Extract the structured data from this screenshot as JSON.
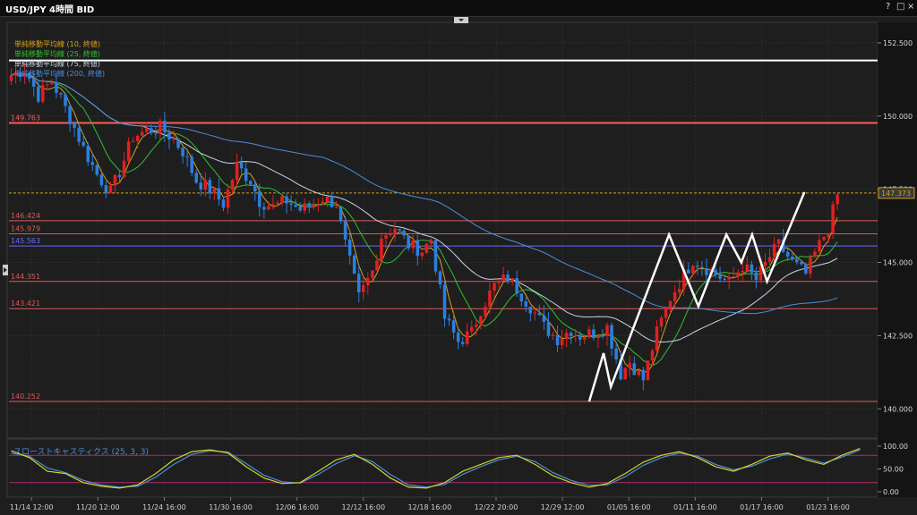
{
  "window": {
    "title": "USD/JPY 4時間 BID",
    "help_label": "?",
    "restore_label": "□",
    "close_label": "×"
  },
  "chart_data": {
    "type": "candlestick",
    "symbol": "USD/JPY",
    "timeframe": "4時間",
    "price_side": "BID",
    "ylim": [
      139.0,
      153.2
    ],
    "yticks": [
      {
        "value": 152.5,
        "label": "152.500"
      },
      {
        "value": 150.0,
        "label": "150.000"
      },
      {
        "value": 147.5,
        "label": "147.500"
      },
      {
        "value": 145.0,
        "label": "145.000"
      },
      {
        "value": 142.5,
        "label": "142.500"
      },
      {
        "value": 140.0,
        "label": "140.000"
      }
    ],
    "xticks": [
      "11/14 12:00",
      "11/20 12:00",
      "11/24 16:00",
      "11/30 16:00",
      "12/06 16:00",
      "12/12 16:00",
      "12/18 16:00",
      "12/22 20:00",
      "12/29 12:00",
      "01/05 16:00",
      "01/11 16:00",
      "01/17 16:00",
      "01/23 16:00"
    ],
    "current_price": {
      "value": 147.373,
      "label": "147.373"
    },
    "legend": [
      {
        "name": "単純移動平均線 (10, 終値)",
        "color": "#d4a017"
      },
      {
        "name": "単純移動平均線 (25, 終値)",
        "color": "#2ec22e"
      },
      {
        "name": "単純移動平均線 (75, 終値)",
        "color": "#c8d4e8"
      },
      {
        "name": "単純移動平均線 (200, 終値)",
        "color": "#4a8ed8"
      }
    ],
    "hlines": [
      {
        "value": 151.9,
        "label": "",
        "color": "#ffffff"
      },
      {
        "value": 149.763,
        "label": "149.763",
        "color": "#ff5a5a"
      },
      {
        "value": 146.424,
        "label": "146.424",
        "color": "#e05858"
      },
      {
        "value": 145.979,
        "label": "145.979",
        "color": "#e05858"
      },
      {
        "value": 145.563,
        "label": "145.563",
        "color": "#6a6aff"
      },
      {
        "value": 144.351,
        "label": "144.351",
        "color": "#e05858"
      },
      {
        "value": 143.421,
        "label": "143.421",
        "color": "#e05858"
      },
      {
        "value": 140.252,
        "label": "140.252",
        "color": "#e05858"
      }
    ],
    "close_path": [
      [
        0,
        151.4
      ],
      [
        3,
        151.6
      ],
      [
        6,
        150.7
      ],
      [
        9,
        151.2
      ],
      [
        11,
        150.6
      ],
      [
        14,
        149.6
      ],
      [
        16,
        148.9
      ],
      [
        19,
        148.0
      ],
      [
        22,
        147.4
      ],
      [
        24,
        148.1
      ],
      [
        27,
        149.3
      ],
      [
        30,
        149.5
      ],
      [
        33,
        149.6
      ],
      [
        36,
        149.2
      ],
      [
        38,
        148.8
      ],
      [
        41,
        147.8
      ],
      [
        44,
        147.5
      ],
      [
        47,
        147.0
      ],
      [
        50,
        148.3
      ],
      [
        53,
        147.8
      ],
      [
        55,
        147.1
      ],
      [
        58,
        146.9
      ],
      [
        61,
        147.1
      ],
      [
        64,
        146.8
      ],
      [
        66,
        146.9
      ],
      [
        69,
        147.2
      ],
      [
        72,
        147.0
      ],
      [
        74,
        145.6
      ],
      [
        77,
        143.8
      ],
      [
        80,
        144.7
      ],
      [
        82,
        145.9
      ],
      [
        85,
        146.2
      ],
      [
        88,
        145.6
      ],
      [
        91,
        145.4
      ],
      [
        93,
        145.8
      ],
      [
        96,
        143.1
      ],
      [
        99,
        142.3
      ],
      [
        102,
        142.6
      ],
      [
        104,
        143.4
      ],
      [
        107,
        144.2
      ],
      [
        110,
        144.5
      ],
      [
        113,
        143.9
      ],
      [
        115,
        143.5
      ],
      [
        118,
        142.8
      ],
      [
        121,
        142.4
      ],
      [
        124,
        142.7
      ],
      [
        126,
        142.5
      ],
      [
        129,
        142.6
      ],
      [
        132,
        142.8
      ],
      [
        135,
        141.2
      ],
      [
        137,
        141.6
      ],
      [
        140,
        141.0
      ],
      [
        143,
        142.6
      ],
      [
        146,
        143.8
      ],
      [
        148,
        144.3
      ],
      [
        151,
        145.1
      ],
      [
        154,
        144.8
      ],
      [
        157,
        144.5
      ],
      [
        159,
        144.3
      ],
      [
        162,
        144.9
      ],
      [
        165,
        144.4
      ],
      [
        168,
        145.2
      ],
      [
        170,
        145.6
      ],
      [
        173,
        145.0
      ],
      [
        176,
        144.6
      ],
      [
        178,
        145.3
      ],
      [
        181,
        146.2
      ],
      [
        183,
        147.3
      ]
    ],
    "zigzag": [
      [
        128,
        140.25
      ],
      [
        131.2,
        141.9
      ],
      [
        132.8,
        140.75
      ],
      [
        145.7,
        145.95
      ],
      [
        152.2,
        143.5
      ],
      [
        158.4,
        145.95
      ],
      [
        161.7,
        145.0
      ],
      [
        164.1,
        145.95
      ],
      [
        167.4,
        144.35
      ],
      [
        175.7,
        147.4
      ]
    ],
    "stochastic": {
      "title": "スローストキャスティクス (25, 3, 3)",
      "ylim": [
        0,
        100
      ],
      "yticks": [
        {
          "value": 100,
          "label": "100.00"
        },
        {
          "value": 50,
          "label": "50.00"
        },
        {
          "value": 0,
          "label": "0.00"
        }
      ],
      "levels": [
        80,
        20
      ],
      "k_color": "#d4d42a",
      "d_color": "#4a8ed8",
      "k_path": [
        [
          0,
          90
        ],
        [
          4,
          75
        ],
        [
          8,
          45
        ],
        [
          12,
          40
        ],
        [
          16,
          20
        ],
        [
          20,
          12
        ],
        [
          24,
          8
        ],
        [
          28,
          15
        ],
        [
          32,
          40
        ],
        [
          36,
          70
        ],
        [
          40,
          88
        ],
        [
          44,
          92
        ],
        [
          48,
          85
        ],
        [
          52,
          55
        ],
        [
          56,
          30
        ],
        [
          60,
          18
        ],
        [
          64,
          20
        ],
        [
          68,
          45
        ],
        [
          72,
          70
        ],
        [
          76,
          82
        ],
        [
          80,
          60
        ],
        [
          84,
          30
        ],
        [
          88,
          10
        ],
        [
          92,
          8
        ],
        [
          96,
          20
        ],
        [
          100,
          45
        ],
        [
          104,
          60
        ],
        [
          108,
          75
        ],
        [
          112,
          80
        ],
        [
          116,
          60
        ],
        [
          120,
          35
        ],
        [
          124,
          20
        ],
        [
          128,
          10
        ],
        [
          132,
          18
        ],
        [
          136,
          40
        ],
        [
          140,
          65
        ],
        [
          144,
          80
        ],
        [
          148,
          88
        ],
        [
          152,
          75
        ],
        [
          156,
          55
        ],
        [
          160,
          45
        ],
        [
          164,
          60
        ],
        [
          168,
          78
        ],
        [
          172,
          85
        ],
        [
          176,
          70
        ],
        [
          180,
          60
        ],
        [
          184,
          80
        ],
        [
          188,
          95
        ]
      ],
      "d_path": [
        [
          0,
          85
        ],
        [
          4,
          78
        ],
        [
          8,
          52
        ],
        [
          12,
          42
        ],
        [
          16,
          25
        ],
        [
          20,
          15
        ],
        [
          24,
          10
        ],
        [
          28,
          12
        ],
        [
          32,
          32
        ],
        [
          36,
          60
        ],
        [
          40,
          82
        ],
        [
          44,
          90
        ],
        [
          48,
          87
        ],
        [
          52,
          62
        ],
        [
          56,
          36
        ],
        [
          60,
          22
        ],
        [
          64,
          19
        ],
        [
          68,
          38
        ],
        [
          72,
          62
        ],
        [
          76,
          79
        ],
        [
          80,
          66
        ],
        [
          84,
          38
        ],
        [
          88,
          15
        ],
        [
          92,
          10
        ],
        [
          96,
          16
        ],
        [
          100,
          38
        ],
        [
          104,
          55
        ],
        [
          108,
          70
        ],
        [
          112,
          78
        ],
        [
          116,
          66
        ],
        [
          120,
          42
        ],
        [
          124,
          25
        ],
        [
          128,
          14
        ],
        [
          132,
          15
        ],
        [
          136,
          33
        ],
        [
          140,
          58
        ],
        [
          144,
          75
        ],
        [
          148,
          85
        ],
        [
          152,
          78
        ],
        [
          156,
          60
        ],
        [
          160,
          48
        ],
        [
          164,
          56
        ],
        [
          168,
          72
        ],
        [
          172,
          83
        ],
        [
          176,
          74
        ],
        [
          180,
          63
        ],
        [
          184,
          76
        ],
        [
          188,
          92
        ]
      ]
    }
  }
}
